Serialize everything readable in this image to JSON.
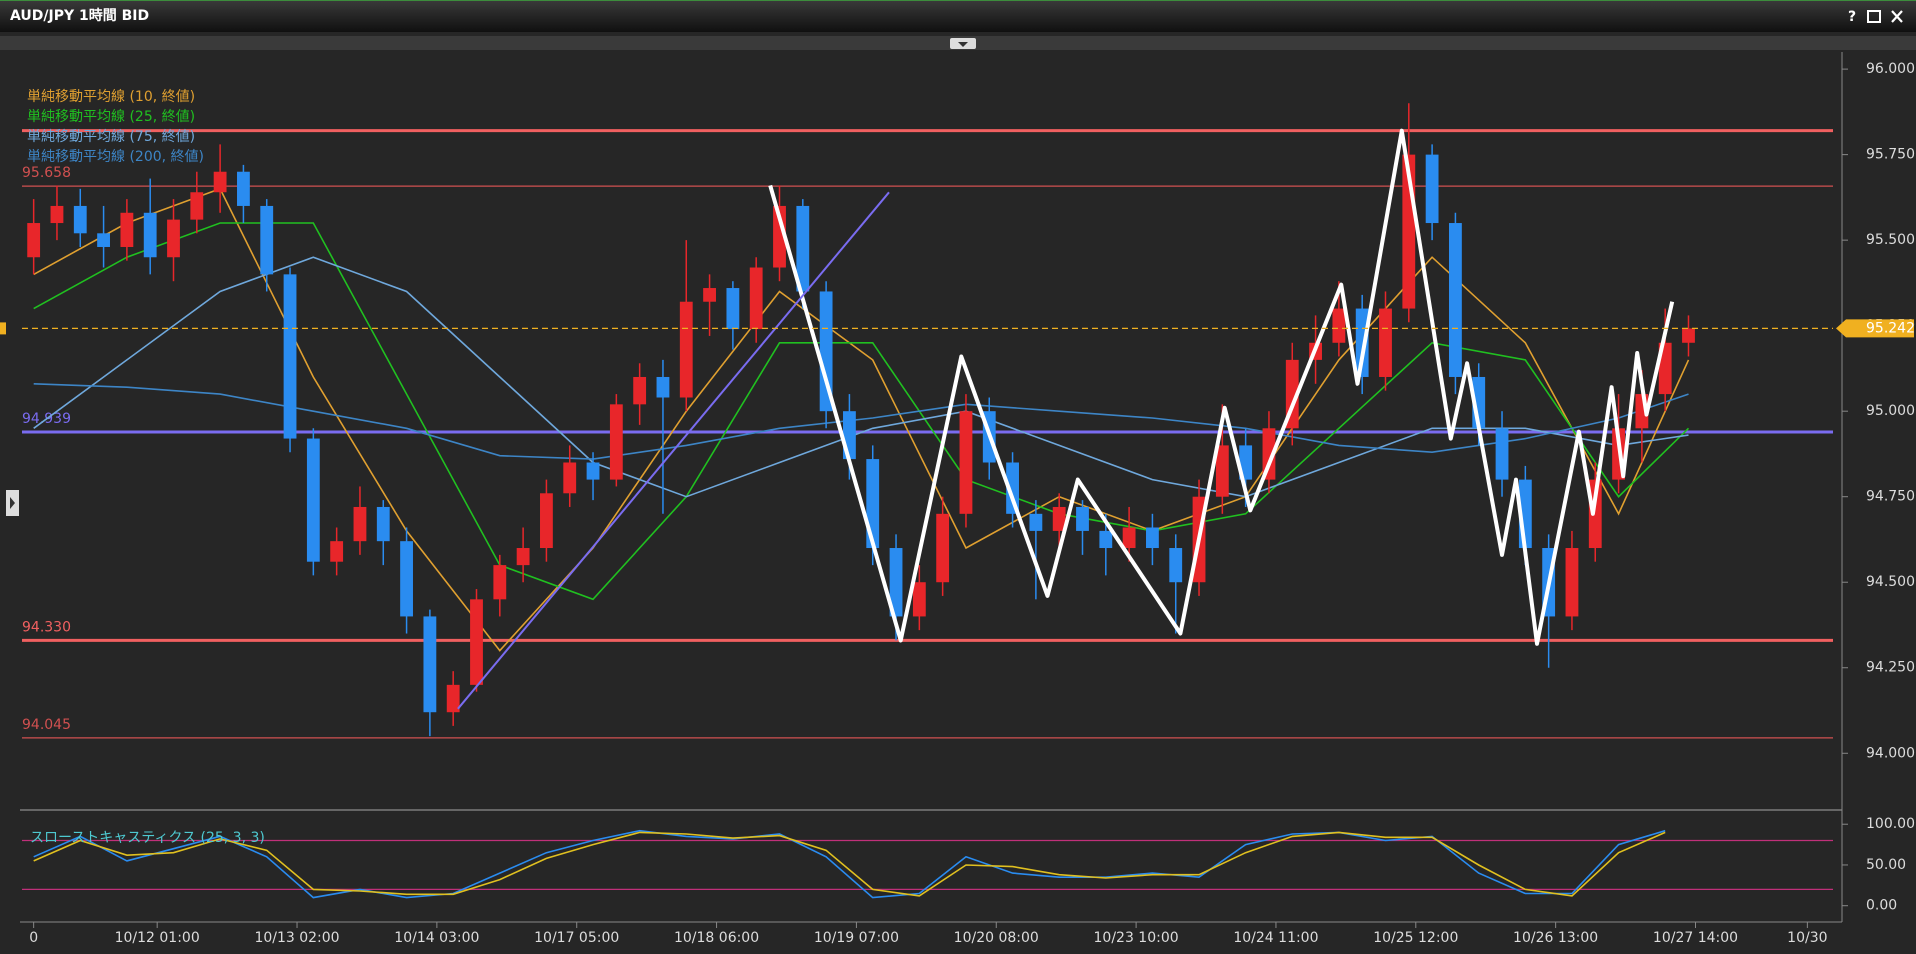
{
  "window": {
    "title": "AUD/JPY 1時間 BID",
    "help": "?"
  },
  "chart_data": {
    "type": "candlestick",
    "up_color": "#e8262a",
    "down_color": "#2a8cf0",
    "xlim": [
      -0.5,
      77.2
    ],
    "xticks": [
      0,
      {
        "value": 5.3,
        "label": "10/12 01:00"
      },
      {
        "value": 11.3,
        "label": "10/13 02:00"
      },
      {
        "value": 17.3,
        "label": "10/14 03:00"
      },
      {
        "value": 23.3,
        "label": "10/17 05:00"
      },
      {
        "value": 29.3,
        "label": "10/18 06:00"
      },
      {
        "value": 35.3,
        "label": "10/19 07:00"
      },
      {
        "value": 41.3,
        "label": "10/20 08:00"
      },
      {
        "value": 47.3,
        "label": "10/23 10:00"
      },
      {
        "value": 53.3,
        "label": "10/24 11:00"
      },
      {
        "value": 59.3,
        "label": "10/25 12:00"
      },
      {
        "value": 65.3,
        "label": "10/26 13:00"
      },
      {
        "value": 71.3,
        "label": "10/27 14:00"
      },
      {
        "value": 76.1,
        "label": "10/30"
      }
    ],
    "ylim": [
      93.84,
      96.05
    ],
    "yticks": [
      {
        "value": 94,
        "label": "94.000"
      },
      {
        "value": 94.25,
        "label": "94.250"
      },
      {
        "value": 94.5,
        "label": "94.500"
      },
      {
        "value": 94.75,
        "label": "94.750"
      },
      {
        "value": 95,
        "label": "95.000"
      },
      {
        "value": 95.25,
        "label": "95.250"
      },
      {
        "value": 95.5,
        "label": "95.500"
      },
      {
        "value": 95.75,
        "label": "95.750"
      },
      {
        "value": 96,
        "label": "96.000"
      }
    ],
    "candles": [
      [
        95.45,
        95.62,
        95.4,
        95.55
      ],
      [
        95.55,
        95.66,
        95.5,
        95.6
      ],
      [
        95.6,
        95.65,
        95.48,
        95.52
      ],
      [
        95.52,
        95.6,
        95.42,
        95.48
      ],
      [
        95.48,
        95.62,
        95.44,
        95.58
      ],
      [
        95.58,
        95.68,
        95.4,
        95.45
      ],
      [
        95.45,
        95.62,
        95.38,
        95.56
      ],
      [
        95.56,
        95.7,
        95.52,
        95.64
      ],
      [
        95.64,
        95.78,
        95.58,
        95.7
      ],
      [
        95.7,
        95.72,
        95.55,
        95.6
      ],
      [
        95.6,
        95.62,
        95.35,
        95.4
      ],
      [
        95.4,
        95.42,
        94.88,
        94.92
      ],
      [
        94.92,
        94.95,
        94.52,
        94.56
      ],
      [
        94.56,
        94.66,
        94.52,
        94.62
      ],
      [
        94.62,
        94.78,
        94.58,
        94.72
      ],
      [
        94.72,
        94.74,
        94.55,
        94.62
      ],
      [
        94.62,
        94.66,
        94.35,
        94.4
      ],
      [
        94.4,
        94.42,
        94.05,
        94.12
      ],
      [
        94.12,
        94.24,
        94.08,
        94.2
      ],
      [
        94.2,
        94.48,
        94.18,
        94.45
      ],
      [
        94.45,
        94.58,
        94.4,
        94.55
      ],
      [
        94.55,
        94.66,
        94.5,
        94.6
      ],
      [
        94.6,
        94.8,
        94.56,
        94.76
      ],
      [
        94.76,
        94.9,
        94.72,
        94.85
      ],
      [
        94.85,
        94.88,
        94.74,
        94.8
      ],
      [
        94.8,
        95.05,
        94.78,
        95.02
      ],
      [
        95.02,
        95.14,
        94.96,
        95.1
      ],
      [
        95.1,
        95.15,
        94.7,
        95.04
      ],
      [
        95.04,
        95.5,
        95.0,
        95.32
      ],
      [
        95.32,
        95.4,
        95.22,
        95.36
      ],
      [
        95.36,
        95.38,
        95.18,
        95.24
      ],
      [
        95.24,
        95.45,
        95.2,
        95.42
      ],
      [
        95.42,
        95.66,
        95.38,
        95.6
      ],
      [
        95.6,
        95.62,
        95.3,
        95.35
      ],
      [
        95.35,
        95.38,
        94.95,
        95.0
      ],
      [
        95.0,
        95.05,
        94.8,
        94.86
      ],
      [
        94.86,
        94.9,
        94.55,
        94.6
      ],
      [
        94.6,
        94.64,
        94.33,
        94.4
      ],
      [
        94.4,
        94.55,
        94.36,
        94.5
      ],
      [
        94.5,
        94.75,
        94.46,
        94.7
      ],
      [
        94.7,
        95.05,
        94.66,
        95.0
      ],
      [
        95.0,
        95.04,
        94.8,
        94.85
      ],
      [
        94.85,
        94.88,
        94.66,
        94.7
      ],
      [
        94.7,
        94.74,
        94.45,
        94.65
      ],
      [
        94.65,
        94.76,
        94.6,
        94.72
      ],
      [
        94.72,
        94.74,
        94.58,
        94.65
      ],
      [
        94.65,
        94.7,
        94.52,
        94.6
      ],
      [
        94.6,
        94.72,
        94.56,
        94.66
      ],
      [
        94.66,
        94.7,
        94.55,
        94.6
      ],
      [
        94.6,
        94.64,
        94.35,
        94.5
      ],
      [
        94.5,
        94.8,
        94.46,
        94.75
      ],
      [
        94.75,
        95.02,
        94.7,
        94.9
      ],
      [
        94.9,
        94.95,
        94.72,
        94.8
      ],
      [
        94.8,
        95.0,
        94.76,
        94.95
      ],
      [
        94.95,
        95.2,
        94.9,
        95.15
      ],
      [
        95.15,
        95.28,
        95.08,
        95.2
      ],
      [
        95.2,
        95.38,
        95.16,
        95.3
      ],
      [
        95.3,
        95.34,
        95.05,
        95.1
      ],
      [
        95.1,
        95.35,
        95.06,
        95.3
      ],
      [
        95.3,
        95.9,
        95.26,
        95.75
      ],
      [
        95.75,
        95.78,
        95.5,
        95.55
      ],
      [
        95.55,
        95.58,
        95.05,
        95.1
      ],
      [
        95.1,
        95.14,
        94.9,
        94.95
      ],
      [
        94.95,
        95.0,
        94.75,
        94.8
      ],
      [
        94.8,
        94.84,
        94.55,
        94.6
      ],
      [
        94.6,
        94.64,
        94.25,
        94.4
      ],
      [
        94.4,
        94.65,
        94.36,
        94.6
      ],
      [
        94.6,
        94.85,
        94.56,
        94.8
      ],
      [
        94.8,
        95.05,
        94.76,
        94.95
      ],
      [
        94.95,
        95.12,
        94.85,
        95.05
      ],
      [
        95.05,
        95.3,
        95.0,
        95.2
      ],
      [
        95.2,
        95.28,
        95.16,
        95.242
      ]
    ],
    "series": [
      {
        "name": "単純移動平均線 (10, 終値)",
        "color": "#e0a030",
        "x": [
          0,
          4,
          8,
          12,
          16,
          20,
          24,
          28,
          32,
          36,
          40,
          44,
          48,
          52,
          56,
          60,
          64,
          68,
          71
        ],
        "values": [
          95.4,
          95.55,
          95.65,
          95.1,
          94.65,
          94.3,
          94.6,
          95.0,
          95.35,
          95.15,
          94.6,
          94.75,
          94.65,
          94.75,
          95.15,
          95.45,
          95.2,
          94.7,
          95.15
        ]
      },
      {
        "name": "単純移動平均線 (25, 終値)",
        "color": "#20c020",
        "x": [
          0,
          4,
          8,
          12,
          16,
          20,
          24,
          28,
          32,
          36,
          40,
          44,
          48,
          52,
          56,
          60,
          64,
          68,
          71
        ],
        "values": [
          95.3,
          95.45,
          95.55,
          95.55,
          95.05,
          94.55,
          94.45,
          94.75,
          95.2,
          95.2,
          94.8,
          94.7,
          94.65,
          94.7,
          94.95,
          95.2,
          95.15,
          94.75,
          94.95
        ]
      },
      {
        "name": "単純移動平均線 (75, 終値)",
        "color": "#6fa8dc",
        "x": [
          0,
          4,
          8,
          12,
          16,
          20,
          24,
          28,
          32,
          36,
          40,
          44,
          48,
          52,
          56,
          60,
          64,
          68,
          71
        ],
        "values": [
          94.95,
          95.15,
          95.35,
          95.45,
          95.35,
          95.1,
          94.85,
          94.75,
          94.85,
          94.95,
          95.0,
          94.9,
          94.8,
          94.75,
          94.85,
          94.95,
          94.95,
          94.9,
          94.93
        ]
      },
      {
        "name": "単純移動平均線 (200, 終値)",
        "color": "#3d85c6",
        "x": [
          0,
          4,
          8,
          12,
          16,
          20,
          24,
          28,
          32,
          36,
          40,
          44,
          48,
          52,
          56,
          60,
          64,
          68,
          71
        ],
        "values": [
          95.08,
          95.07,
          95.05,
          95.0,
          94.95,
          94.87,
          94.86,
          94.9,
          94.95,
          94.98,
          95.02,
          95.0,
          94.98,
          94.95,
          94.9,
          94.88,
          94.92,
          94.98,
          95.05
        ]
      }
    ],
    "levels": [
      {
        "value": 95.82,
        "color": "#f06060",
        "style": "thick",
        "show_label": false
      },
      {
        "value": 95.658,
        "color": "#d05050",
        "style": "thin"
      },
      {
        "value": 94.939,
        "color": "#7a6cf0",
        "style": "thick"
      },
      {
        "value": 94.33,
        "label": "94.330",
        "color": "#f06060",
        "style": "thick"
      },
      {
        "value": 94.045,
        "color": "#d05050",
        "style": "thin"
      }
    ],
    "last_price": {
      "value": 95.242,
      "color": "#f0b020"
    },
    "drawings": [
      {
        "color": "#ffffff",
        "x": [
          31.6,
          37.2,
          39.8,
          43.5,
          44.8,
          49.2,
          51.1,
          52.2,
          56.1,
          56.8,
          58.7,
          60.8,
          61.5,
          63.0,
          63.6,
          64.5,
          66.3,
          66.9,
          67.7,
          68.2,
          68.8,
          69.2,
          70.3
        ],
        "values": [
          95.66,
          94.33,
          95.16,
          94.46,
          94.8,
          94.35,
          95.01,
          94.71,
          95.37,
          95.08,
          95.82,
          94.92,
          95.14,
          94.58,
          94.8,
          94.32,
          94.94,
          94.7,
          95.07,
          94.81,
          95.17,
          94.99,
          95.32
        ]
      },
      {
        "color": "#7a6cf0",
        "x": [
          18.2,
          36.7
        ],
        "values": [
          94.13,
          95.64
        ]
      }
    ],
    "oscillator": {
      "title": "スローストキャスティクス (25, 3, 3)",
      "ylim": [
        -20,
        115
      ],
      "yticks": [
        {
          "value": 0,
          "label": "0.00"
        },
        {
          "value": 50,
          "label": "50.00"
        },
        {
          "value": 100,
          "label": "100.00"
        }
      ],
      "levels": [
        20,
        80
      ],
      "level_color": "#c0307a",
      "x": [
        0,
        2,
        4,
        6,
        8,
        10,
        12,
        14,
        16,
        18,
        20,
        22,
        24,
        26,
        28,
        30,
        32,
        34,
        36,
        38,
        40,
        42,
        44,
        46,
        48,
        50,
        52,
        54,
        56,
        58,
        60,
        62,
        64,
        66,
        68,
        70
      ],
      "series": [
        {
          "color": "#2a8cf0",
          "values": [
            60,
            85,
            55,
            70,
            85,
            60,
            10,
            20,
            10,
            15,
            40,
            65,
            80,
            92,
            85,
            82,
            88,
            60,
            10,
            15,
            60,
            40,
            35,
            35,
            40,
            35,
            75,
            88,
            90,
            80,
            85,
            40,
            15,
            15,
            75,
            92
          ]
        },
        {
          "color": "#e0c020",
          "values": [
            55,
            80,
            62,
            65,
            82,
            68,
            20,
            18,
            14,
            14,
            32,
            58,
            75,
            90,
            88,
            83,
            86,
            68,
            20,
            12,
            50,
            48,
            38,
            34,
            38,
            38,
            65,
            85,
            90,
            84,
            84,
            50,
            20,
            12,
            65,
            90
          ]
        }
      ]
    }
  }
}
